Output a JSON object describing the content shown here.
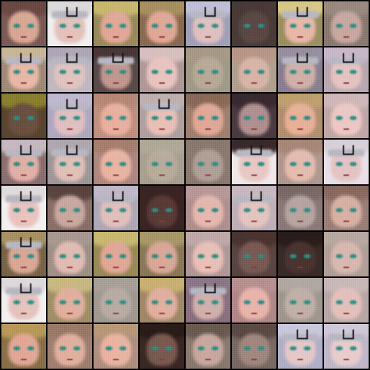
{
  "image": {
    "description_kind": "generated-face-grid",
    "rows": 8,
    "cols": 8,
    "palette": {
      "background": "#000000",
      "eye": "#2f8f86",
      "headband": "#b8b8c4"
    },
    "tiles": [
      {
        "bg": "#7a5a55",
        "face": "#d8a896",
        "hair": "#6b4a44",
        "band": false
      },
      {
        "bg": "#f0eeee",
        "face": "#e4c2bc",
        "hair": "#dcdadc",
        "band": true
      },
      {
        "bg": "#9a8a5a",
        "face": "#e0a898",
        "hair": "#c8b870",
        "band": false
      },
      {
        "bg": "#8a6a50",
        "face": "#e0a898",
        "hair": "#a89060",
        "band": false
      },
      {
        "bg": "#a0a0b8",
        "face": "#e0c0c0",
        "hair": "#c0c0d8",
        "band": true
      },
      {
        "bg": "#4a3a38",
        "face": "#5a4844",
        "hair": "#4a3a38",
        "band": false
      },
      {
        "bg": "#9a9060",
        "face": "#e8b8a8",
        "hair": "#d8c888",
        "band": true
      },
      {
        "bg": "#8a7a70",
        "face": "#c8a8a0",
        "hair": "#9a8a80",
        "band": false
      },
      {
        "bg": "#a08a78",
        "face": "#e8b8a8",
        "hair": "#c8b898",
        "band": true
      },
      {
        "bg": "#c0b8c0",
        "face": "#e0c4c0",
        "hair": "#b0a8b8",
        "band": true
      },
      {
        "bg": "#5a4a48",
        "face": "#c09890",
        "hair": "#4a3838",
        "band": true
      },
      {
        "bg": "#b09898",
        "face": "#e8c4c0",
        "hair": "#d8c0c0",
        "band": false
      },
      {
        "bg": "#a09a88",
        "face": "#b8aa98",
        "hair": "#a89a88",
        "band": false
      },
      {
        "bg": "#b0a090",
        "face": "#d8b4a8",
        "hair": "#b89888",
        "band": false
      },
      {
        "bg": "#8a8090",
        "face": "#d0b0a8",
        "hair": "#9890a0",
        "band": true
      },
      {
        "bg": "#b8a8b0",
        "face": "#e4c4c0",
        "hair": "#c8b8c8",
        "band": true
      },
      {
        "bg": "#5a4430",
        "face": "#6a5040",
        "hair": "#8a8030",
        "band": false
      },
      {
        "bg": "#b0a8c0",
        "face": "#e0c0c0",
        "hair": "#c0b8d0",
        "band": true
      },
      {
        "bg": "#c09080",
        "face": "#e8b0a0",
        "hair": "#b88878",
        "band": false
      },
      {
        "bg": "#b0a0a0",
        "face": "#e8c0b8",
        "hair": "#c0b0b0",
        "band": true
      },
      {
        "bg": "#a08070",
        "face": "#e0a898",
        "hair": "#8a6a58",
        "band": false
      },
      {
        "bg": "#4a3a40",
        "face": "#b09090",
        "hair": "#3a2a30",
        "band": false
      },
      {
        "bg": "#b09070",
        "face": "#e8b098",
        "hair": "#c0a070",
        "band": false
      },
      {
        "bg": "#c0a8a8",
        "face": "#ecc8c4",
        "hair": "#d0b8b8",
        "band": false
      },
      {
        "bg": "#8a7070",
        "face": "#e0b0a8",
        "hair": "#c8b8c0",
        "band": true
      },
      {
        "bg": "#a09898",
        "face": "#e0c0b8",
        "hair": "#b0a8b0",
        "band": true
      },
      {
        "bg": "#b08880",
        "face": "#e8b4a4",
        "hair": "#a88070",
        "band": false
      },
      {
        "bg": "#a8a090",
        "face": "#b8ac9c",
        "hair": "#b0a898",
        "band": false
      },
      {
        "bg": "#8a7a70",
        "face": "#b0a098",
        "hair": "#8a7a70",
        "band": false
      },
      {
        "bg": "#f0e8e8",
        "face": "#e8c8c4",
        "hair": "#3a2a2a",
        "band": true
      },
      {
        "bg": "#b09890",
        "face": "#e4bcb0",
        "hair": "#a88878",
        "band": false
      },
      {
        "bg": "#e8e0e8",
        "face": "#e4c4c4",
        "hair": "#d8d0d8",
        "band": true
      },
      {
        "bg": "#f4f0f0",
        "face": "#e8c4c0",
        "hair": "#e0dcdc",
        "band": true
      },
      {
        "bg": "#8a7068",
        "face": "#c8a8a0",
        "hair": "#5a4440",
        "band": false
      },
      {
        "bg": "#b0a8b8",
        "face": "#e0c0bc",
        "hair": "#c0b8c8",
        "band": true
      },
      {
        "bg": "#3a2424",
        "face": "#5a3a36",
        "hair": "#3a2424",
        "band": false
      },
      {
        "bg": "#b09090",
        "face": "#e4b8b0",
        "hair": "#b89898",
        "band": false
      },
      {
        "bg": "#c0b0b8",
        "face": "#e4c4c0",
        "hair": "#c8b8c0",
        "band": true
      },
      {
        "bg": "#8a7a78",
        "face": "#b8a4a0",
        "hair": "#7a6a68",
        "band": false
      },
      {
        "bg": "#9a8078",
        "face": "#d8b0a4",
        "hair": "#8a6a60",
        "band": false
      },
      {
        "bg": "#7a6448",
        "face": "#d8a898",
        "hair": "#a89060",
        "band": true
      },
      {
        "bg": "#a09088",
        "face": "#e0bcb4",
        "hair": "#a89890",
        "band": false
      },
      {
        "bg": "#9a8a58",
        "face": "#e0a898",
        "hair": "#c8b870",
        "band": false
      },
      {
        "bg": "#8a7858",
        "face": "#d8a898",
        "hair": "#a89868",
        "band": false
      },
      {
        "bg": "#b09898",
        "face": "#e8c0b8",
        "hair": "#c0a8a8",
        "band": false
      },
      {
        "bg": "#5a4440",
        "face": "#7a5a54",
        "hair": "#4a3430",
        "band": false
      },
      {
        "bg": "#3a2a28",
        "face": "#4a3430",
        "hair": "#2a1c1a",
        "band": false
      },
      {
        "bg": "#b0a098",
        "face": "#d8b8b0",
        "hair": "#b8a8a0",
        "band": false
      },
      {
        "bg": "#f4f0f0",
        "face": "#e4c4c0",
        "hair": "#dcd8dc",
        "band": true
      },
      {
        "bg": "#a09068",
        "face": "#e0b0a0",
        "hair": "#c8b880",
        "band": false
      },
      {
        "bg": "#a09a90",
        "face": "#b8aca4",
        "hair": "#a8a098",
        "band": false
      },
      {
        "bg": "#a08868",
        "face": "#e0b0a0",
        "hair": "#c8b070",
        "band": false
      },
      {
        "bg": "#8a7080",
        "face": "#d0b0ac",
        "hair": "#8a7888",
        "band": true
      },
      {
        "bg": "#b08888",
        "face": "#e8b4ac",
        "hair": "#b89090",
        "band": false
      },
      {
        "bg": "#a09890",
        "face": "#c0b0a8",
        "hair": "#b0a8a0",
        "band": false
      },
      {
        "bg": "#b8a8a8",
        "face": "#e4c0bc",
        "hair": "#c8b8b8",
        "band": false
      },
      {
        "bg": "#8a7048",
        "face": "#e0a898",
        "hair": "#b89858",
        "band": false
      },
      {
        "bg": "#a08070",
        "face": "#e0b0a0",
        "hair": "#9a7a68",
        "band": false
      },
      {
        "bg": "#b09080",
        "face": "#e8b4a4",
        "hair": "#b89878",
        "band": false
      },
      {
        "bg": "#3a2824",
        "face": "#7a5a50",
        "hair": "#2a1c18",
        "band": false
      },
      {
        "bg": "#8a7a70",
        "face": "#c8a8a0",
        "hair": "#6a5a50",
        "band": false
      },
      {
        "bg": "#7a6a64",
        "face": "#a08880",
        "hair": "#5a4a44",
        "band": false
      },
      {
        "bg": "#b0b0c8",
        "face": "#e4c8c8",
        "hair": "#c8c8dc",
        "band": true
      },
      {
        "bg": "#c0b8c8",
        "face": "#e8cccc",
        "hair": "#d0c8d8",
        "band": true
      }
    ]
  }
}
